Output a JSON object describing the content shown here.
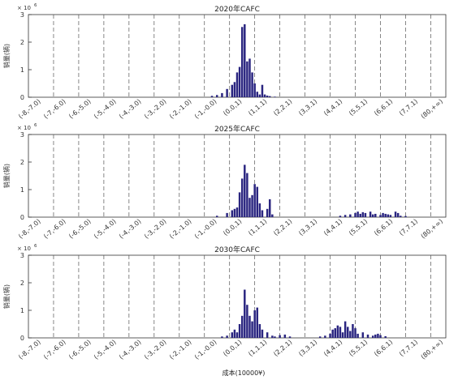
{
  "chart_data": [
    {
      "type": "bar",
      "title": "2020年CAFC",
      "ylabel": "销量(辆)",
      "y_multiplier": "× 10",
      "y_multiplier_exp": "6",
      "ylim": [
        0,
        3
      ],
      "yticks": [
        "0",
        "1",
        "2",
        "3"
      ],
      "xlim": [
        -8,
        8.6
      ],
      "categories": [
        "(-8,-7.0)",
        "(-7,-6.0)",
        "(-6,-5.0)",
        "(-5,-4.0)",
        "(-4,-3.0)",
        "(-3,-2.0)",
        "(-2,-1.0)",
        "(-1,-0.0)",
        "(0.0,1)",
        "(1,1.1)",
        "(2,2.1)",
        "(3,3.1)",
        "(4,4.1)",
        "(5,5.1)",
        "(6,6.1)",
        "(7,7.1)",
        "(80,+∞)"
      ],
      "grid": "vertical dashed",
      "x": [
        -0.7,
        -0.5,
        -0.3,
        -0.1,
        0.1,
        0.2,
        0.3,
        0.4,
        0.5,
        0.6,
        0.7,
        0.8,
        0.9,
        1.0,
        1.1,
        1.2,
        1.3,
        1.4,
        1.5,
        1.6,
        1.8
      ],
      "values": [
        0.05,
        0.08,
        0.15,
        0.3,
        0.45,
        0.55,
        0.9,
        1.1,
        2.55,
        2.65,
        1.3,
        1.4,
        0.9,
        0.5,
        0.2,
        0.1,
        0.45,
        0.1,
        0.06,
        0.04,
        0.02
      ]
    },
    {
      "type": "bar",
      "title": "2025年CAFC",
      "ylabel": "销量(辆)",
      "y_multiplier": "× 10",
      "y_multiplier_exp": "6",
      "ylim": [
        0,
        3
      ],
      "yticks": [
        "0",
        "1",
        "2",
        "3"
      ],
      "xlim": [
        -8,
        8.6
      ],
      "categories": [
        "(-8,-7.0)",
        "(-7,-6.0)",
        "(-6,-5.0)",
        "(-5,-4.0)",
        "(-4,-3.0)",
        "(-3,-2.0)",
        "(-2,-1.0)",
        "(-1,-0.0)",
        "(0.0,1)",
        "(1,1.1)",
        "(2,2.1)",
        "(3,3.1)",
        "(4,4.1)",
        "(5,5.1)",
        "(6,6.1)",
        "(7,7.1)",
        "(80,+∞)"
      ],
      "grid": "vertical dashed",
      "x": [
        -0.5,
        -0.1,
        0.1,
        0.2,
        0.3,
        0.4,
        0.5,
        0.6,
        0.7,
        0.8,
        0.9,
        1.0,
        1.1,
        1.2,
        1.3,
        1.5,
        1.6,
        1.7,
        4.4,
        4.6,
        4.8,
        5.0,
        5.1,
        5.2,
        5.3,
        5.4,
        5.6,
        5.7,
        5.8,
        6.0,
        6.1,
        6.2,
        6.3,
        6.4,
        6.6,
        6.7,
        6.8,
        7.0
      ],
      "values": [
        0.05,
        0.15,
        0.25,
        0.3,
        0.35,
        0.9,
        1.4,
        1.9,
        1.6,
        0.7,
        0.8,
        1.2,
        1.1,
        0.5,
        0.25,
        0.3,
        0.65,
        0.1,
        0.05,
        0.08,
        0.1,
        0.15,
        0.2,
        0.12,
        0.18,
        0.15,
        0.2,
        0.1,
        0.12,
        0.08,
        0.15,
        0.12,
        0.1,
        0.08,
        0.2,
        0.15,
        0.05,
        0.04
      ]
    },
    {
      "type": "bar",
      "title": "2030年CAFC",
      "ylabel": "销量(辆)",
      "y_multiplier": "× 10",
      "y_multiplier_exp": "6",
      "ylim": [
        0,
        3
      ],
      "yticks": [
        "0",
        "1",
        "2",
        "3"
      ],
      "xlim": [
        -8,
        8.6
      ],
      "xlabel": "成本(10000¥)",
      "categories": [
        "(-8,-7.0)",
        "(-7,-6.0)",
        "(-6,-5.0)",
        "(-5,-4.0)",
        "(-4,-3.0)",
        "(-3,-2.0)",
        "(-2,-1.0)",
        "(-1,-0.0)",
        "(0.0,1)",
        "(1,1.1)",
        "(2,2.1)",
        "(3,3.1)",
        "(4,4.1)",
        "(5,5.1)",
        "(6,6.1)",
        "(7,7.1)",
        "(80,+∞)"
      ],
      "grid": "vertical dashed",
      "x": [
        -0.3,
        -0.1,
        0.1,
        0.2,
        0.3,
        0.4,
        0.5,
        0.6,
        0.7,
        0.8,
        0.9,
        1.0,
        1.1,
        1.2,
        1.3,
        1.5,
        1.7,
        1.8,
        2.0,
        2.2,
        2.4,
        3.6,
        3.8,
        4.0,
        4.1,
        4.2,
        4.3,
        4.4,
        4.5,
        4.6,
        4.7,
        4.8,
        4.9,
        5.0,
        5.1,
        5.3,
        5.5,
        5.7,
        5.8,
        5.9,
        6.0,
        6.2
      ],
      "values": [
        0.05,
        0.08,
        0.2,
        0.3,
        0.2,
        0.5,
        0.8,
        1.75,
        1.2,
        0.8,
        0.6,
        1.0,
        1.1,
        0.5,
        0.3,
        0.2,
        0.08,
        0.05,
        0.1,
        0.12,
        0.05,
        0.05,
        0.08,
        0.15,
        0.3,
        0.35,
        0.45,
        0.4,
        0.2,
        0.6,
        0.4,
        0.25,
        0.5,
        0.35,
        0.15,
        0.2,
        0.12,
        0.08,
        0.12,
        0.15,
        0.1,
        0.06
      ]
    }
  ]
}
